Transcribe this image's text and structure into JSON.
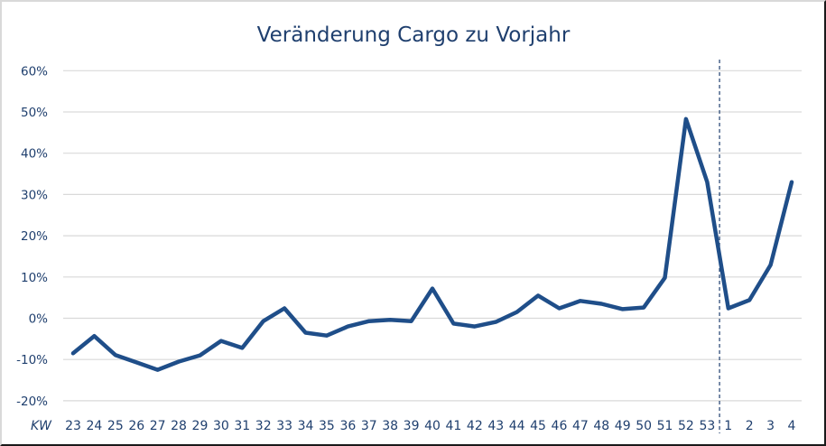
{
  "chart_data": {
    "type": "line",
    "title": "Veränderung Cargo zu Vorjahr",
    "xlabel": "KW",
    "ylabel": "",
    "ylim": [
      -0.2,
      0.6
    ],
    "yticks": [
      "-20%",
      "-10%",
      "0%",
      "10%",
      "20%",
      "30%",
      "40%",
      "50%",
      "60%"
    ],
    "grid": true,
    "legend": null,
    "categories": [
      "23",
      "24",
      "25",
      "26",
      "27",
      "28",
      "29",
      "30",
      "31",
      "32",
      "33",
      "34",
      "35",
      "36",
      "37",
      "38",
      "39",
      "40",
      "41",
      "42",
      "43",
      "44",
      "45",
      "46",
      "47",
      "48",
      "49",
      "50",
      "51",
      "52",
      "53",
      "1",
      "2",
      "3",
      "4"
    ],
    "series": [
      {
        "name": "Veränderung Cargo zu Vorjahr",
        "color": "#1f4e89",
        "values": [
          -0.085,
          -0.043,
          -0.089,
          -0.107,
          -0.125,
          -0.105,
          -0.09,
          -0.055,
          -0.072,
          -0.007,
          0.024,
          -0.035,
          -0.042,
          -0.02,
          -0.007,
          -0.004,
          -0.007,
          0.072,
          -0.013,
          -0.02,
          -0.009,
          0.015,
          0.055,
          0.024,
          0.042,
          0.035,
          0.022,
          0.026,
          0.098,
          0.483,
          0.33,
          0.024,
          0.044,
          0.129,
          0.33
        ]
      }
    ],
    "annotations": [
      {
        "type": "vertical-dashed-line",
        "between": [
          "53",
          "1"
        ],
        "meaning": "year boundary"
      }
    ]
  },
  "colors": {
    "line": "#1f4e89",
    "text": "#1f3f6e",
    "grid": "#d9d9d9"
  }
}
